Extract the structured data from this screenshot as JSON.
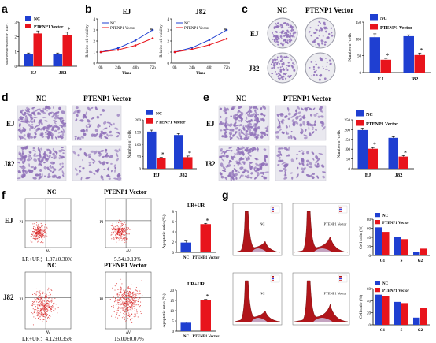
{
  "colors": {
    "nc": "#1f3fd1",
    "pt": "#e8141c",
    "stain": "#8e6fb8",
    "flow": "#d81e1e",
    "peak": "#b0151a"
  },
  "legend": {
    "nc": "NC",
    "pt": "PTENP1 Vector"
  },
  "panels": {
    "a": {
      "letter": "a",
      "chart_data": {
        "type": "bar",
        "ylabel": "Relative expression of PTENP1",
        "categories": [
          "EJ",
          "J82"
        ],
        "series": [
          {
            "name": "NC",
            "values": [
              1,
              1
            ],
            "errors": [
              0.05,
              0.05
            ]
          },
          {
            "name": "PTENP1 Vector",
            "values": [
              2.6,
              2.5
            ],
            "errors": [
              0.2,
              0.2
            ]
          }
        ],
        "yticks": [
          "0",
          "1",
          "2",
          "3"
        ],
        "ylim": [
          0,
          3.5
        ],
        "sig": "*"
      }
    },
    "b": {
      "letter": "b",
      "charts": [
        {
          "title": "EJ",
          "ylabel": "Relative cell viability",
          "xlabel": "Time",
          "x": [
            "0h",
            "24h",
            "48h",
            "72h"
          ],
          "series": [
            {
              "name": "NC",
              "values": [
                1,
                1.35,
                2.05,
                3.0
              ]
            },
            {
              "name": "PTENP1 Vector",
              "values": [
                1,
                1.2,
                1.6,
                2.25
              ]
            }
          ],
          "yticks": [
            "0",
            "1",
            "2",
            "3",
            "4"
          ],
          "ylim": [
            0,
            4
          ],
          "sig": "*"
        },
        {
          "title": "J82",
          "ylabel": "Relative cell viability",
          "xlabel": "Time",
          "x": [
            "0h",
            "24h",
            "48h",
            "72h"
          ],
          "series": [
            {
              "name": "NC",
              "values": [
                1,
                1.4,
                2.1,
                3.0
              ]
            },
            {
              "name": "PTENP1 Vector",
              "values": [
                1,
                1.25,
                1.65,
                2.2
              ]
            }
          ],
          "yticks": [
            "0",
            "1",
            "2",
            "3",
            "4"
          ],
          "ylim": [
            0,
            4
          ],
          "sig": "*"
        }
      ]
    },
    "c": {
      "letter": "c",
      "nc_label": "NC",
      "pt_label": "PTENP1 Vector",
      "row1": "EJ",
      "row2": "J82",
      "chart_data": {
        "type": "bar",
        "ylabel": "Number of cells",
        "categories": [
          "EJ",
          "J82"
        ],
        "series": [
          {
            "name": "NC",
            "values": [
              105,
              108
            ],
            "errors": [
              10,
              4
            ]
          },
          {
            "name": "PTENP1 Vector",
            "values": [
              38,
              52
            ],
            "errors": [
              4,
              6
            ]
          }
        ],
        "yticks": [
          "0",
          "50",
          "100",
          "150"
        ],
        "ylim": [
          0,
          150
        ],
        "sig": "*"
      }
    },
    "d": {
      "letter": "d",
      "nc_label": "NC",
      "pt_label": "PTENP1 Vector",
      "row1": "EJ",
      "row2": "J82",
      "chart_data": {
        "type": "bar",
        "ylabel": "Number of cells",
        "categories": [
          "EJ",
          "J82"
        ],
        "series": [
          {
            "name": "NC",
            "values": [
              152,
              138
            ],
            "errors": [
              6,
              6
            ]
          },
          {
            "name": "PTENP1 Vector",
            "values": [
              42,
              47
            ],
            "errors": [
              5,
              5
            ]
          }
        ],
        "yticks": [
          "0",
          "50",
          "100",
          "150",
          "200"
        ],
        "ylim": [
          0,
          200
        ],
        "sig": "*"
      }
    },
    "e": {
      "letter": "e",
      "nc_label": "NC",
      "pt_label": "PTENP1 Vector",
      "row1": "EJ",
      "row2": "J82",
      "chart_data": {
        "type": "bar",
        "ylabel": "Number of cells",
        "categories": [
          "EJ",
          "J82"
        ],
        "series": [
          {
            "name": "NC",
            "values": [
              198,
              158
            ],
            "errors": [
              10,
              6
            ]
          },
          {
            "name": "PTENP1 Vector",
            "values": [
              102,
              62
            ],
            "errors": [
              6,
              5
            ]
          }
        ],
        "yticks": [
          "0",
          "50",
          "100",
          "150",
          "200",
          "250"
        ],
        "ylim": [
          0,
          250
        ],
        "sig": "*"
      }
    },
    "f": {
      "letter": "f",
      "nc_label": "NC",
      "pt_label": "PTENP1 Vector",
      "row1": "EJ",
      "row2": "J82",
      "axis_x": "AV",
      "axis_y": "PI",
      "stats": {
        "ej_nc": "LR+UR：1.87±0.30%",
        "ej_pt": "5.54±0.13%",
        "j82_nc": "LR+UR：4.12±0.35%",
        "j82_pt": "15.00±0.07%"
      },
      "charts": [
        {
          "title": "LR+UR",
          "type": "bar",
          "ylabel": "Apoptotic ratio (%)",
          "categories": [
            "NC",
            "PTENP1 Vector"
          ],
          "values": [
            1.9,
            5.5
          ],
          "errors": [
            0.3,
            0.15
          ],
          "yticks": [
            "0",
            "2",
            "4",
            "6",
            "8"
          ],
          "ylim": [
            0,
            8
          ],
          "sig": "*"
        },
        {
          "title": "LR+UR",
          "type": "bar",
          "ylabel": "Apoptotic ratio (%)",
          "categories": [
            "NC",
            "PTENP1 Vector"
          ],
          "values": [
            4.1,
            15.0
          ],
          "errors": [
            0.35,
            0.5
          ],
          "yticks": [
            "0",
            "5",
            "10",
            "15",
            "20"
          ],
          "ylim": [
            0,
            20
          ],
          "sig": "*"
        }
      ]
    },
    "g": {
      "letter": "g",
      "nc_label": "NC",
      "pt_label": "PTENP1 Vector",
      "charts": [
        {
          "type": "bar",
          "ylabel": "Cell ratio (%)",
          "categories": [
            "G1",
            "S",
            "G2"
          ],
          "series": [
            {
              "name": "NC",
              "values": [
                62,
                40,
                8
              ]
            },
            {
              "name": "PTENP1 Vector",
              "values": [
                52,
                36,
                15
              ]
            }
          ],
          "yticks": [
            "0",
            "20",
            "40",
            "60",
            "80"
          ],
          "ylim": [
            0,
            80
          ]
        },
        {
          "type": "bar",
          "ylabel": "Cell ratio (%)",
          "categories": [
            "G1",
            "S",
            "G2"
          ],
          "series": [
            {
              "name": "NC",
              "values": [
                50,
                38,
                12
              ]
            },
            {
              "name": "PTENP1 Vector",
              "values": [
                47,
                36,
                28
              ]
            }
          ],
          "yticks": [
            "0",
            "20",
            "40",
            "60"
          ],
          "ylim": [
            0,
            60
          ]
        }
      ]
    }
  }
}
